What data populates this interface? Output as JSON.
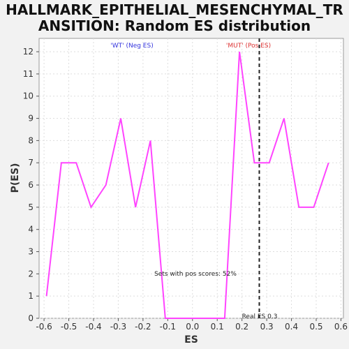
{
  "chart_data": {
    "type": "line",
    "title_lines": [
      "HALLMARK_EPITHELIAL_MESENCHYMAL_TR",
      "ANSITION: Random ES distribution"
    ],
    "xlabel": "ES",
    "ylabel": "P(ES)",
    "xlim": [
      -0.62,
      0.61
    ],
    "ylim": [
      0,
      12.6
    ],
    "x_ticks": [
      -0.6,
      -0.5,
      -0.4,
      -0.3,
      -0.2,
      -0.1,
      0.0,
      0.1,
      0.2,
      0.3,
      0.4,
      0.5,
      0.6
    ],
    "x_tick_labels": [
      "-0.6",
      "-0.5",
      "-0.4",
      "-0.3",
      "-0.2",
      "-0.1",
      "0.0",
      "0.1",
      "0.2",
      "0.3",
      "0.4",
      "0.5",
      "0.6"
    ],
    "y_ticks": [
      0,
      1,
      2,
      3,
      4,
      5,
      6,
      7,
      8,
      9,
      10,
      11,
      12
    ],
    "y_tick_labels": [
      "0",
      "1",
      "2",
      "3",
      "4",
      "5",
      "6",
      "7",
      "8",
      "9",
      "10",
      "11",
      "12"
    ],
    "grid": true,
    "series": [
      {
        "color": "#ff44ff",
        "x": [
          -0.59,
          -0.53,
          -0.47,
          -0.41,
          -0.35,
          -0.29,
          -0.23,
          -0.17,
          -0.11,
          -0.05,
          0.01,
          0.07,
          0.13,
          0.19,
          0.25,
          0.31,
          0.37,
          0.43,
          0.49,
          0.55
        ],
        "y": [
          1,
          7,
          7,
          5,
          6,
          9,
          5,
          8,
          0,
          0,
          0,
          0,
          0,
          12,
          7,
          7,
          9,
          5,
          5,
          7
        ]
      }
    ],
    "real_es": 0.27,
    "real_es_label": "Real ES 0.3",
    "annotations": {
      "neg_label": "'WT' (Neg ES)",
      "pos_label": "'MUT' (Pos ES)",
      "pos_scores": "Sets with pos scores: 52%"
    },
    "colors": {
      "neg": "#3333dd",
      "pos": "#dd3333",
      "real_es_line": "#222222"
    }
  }
}
